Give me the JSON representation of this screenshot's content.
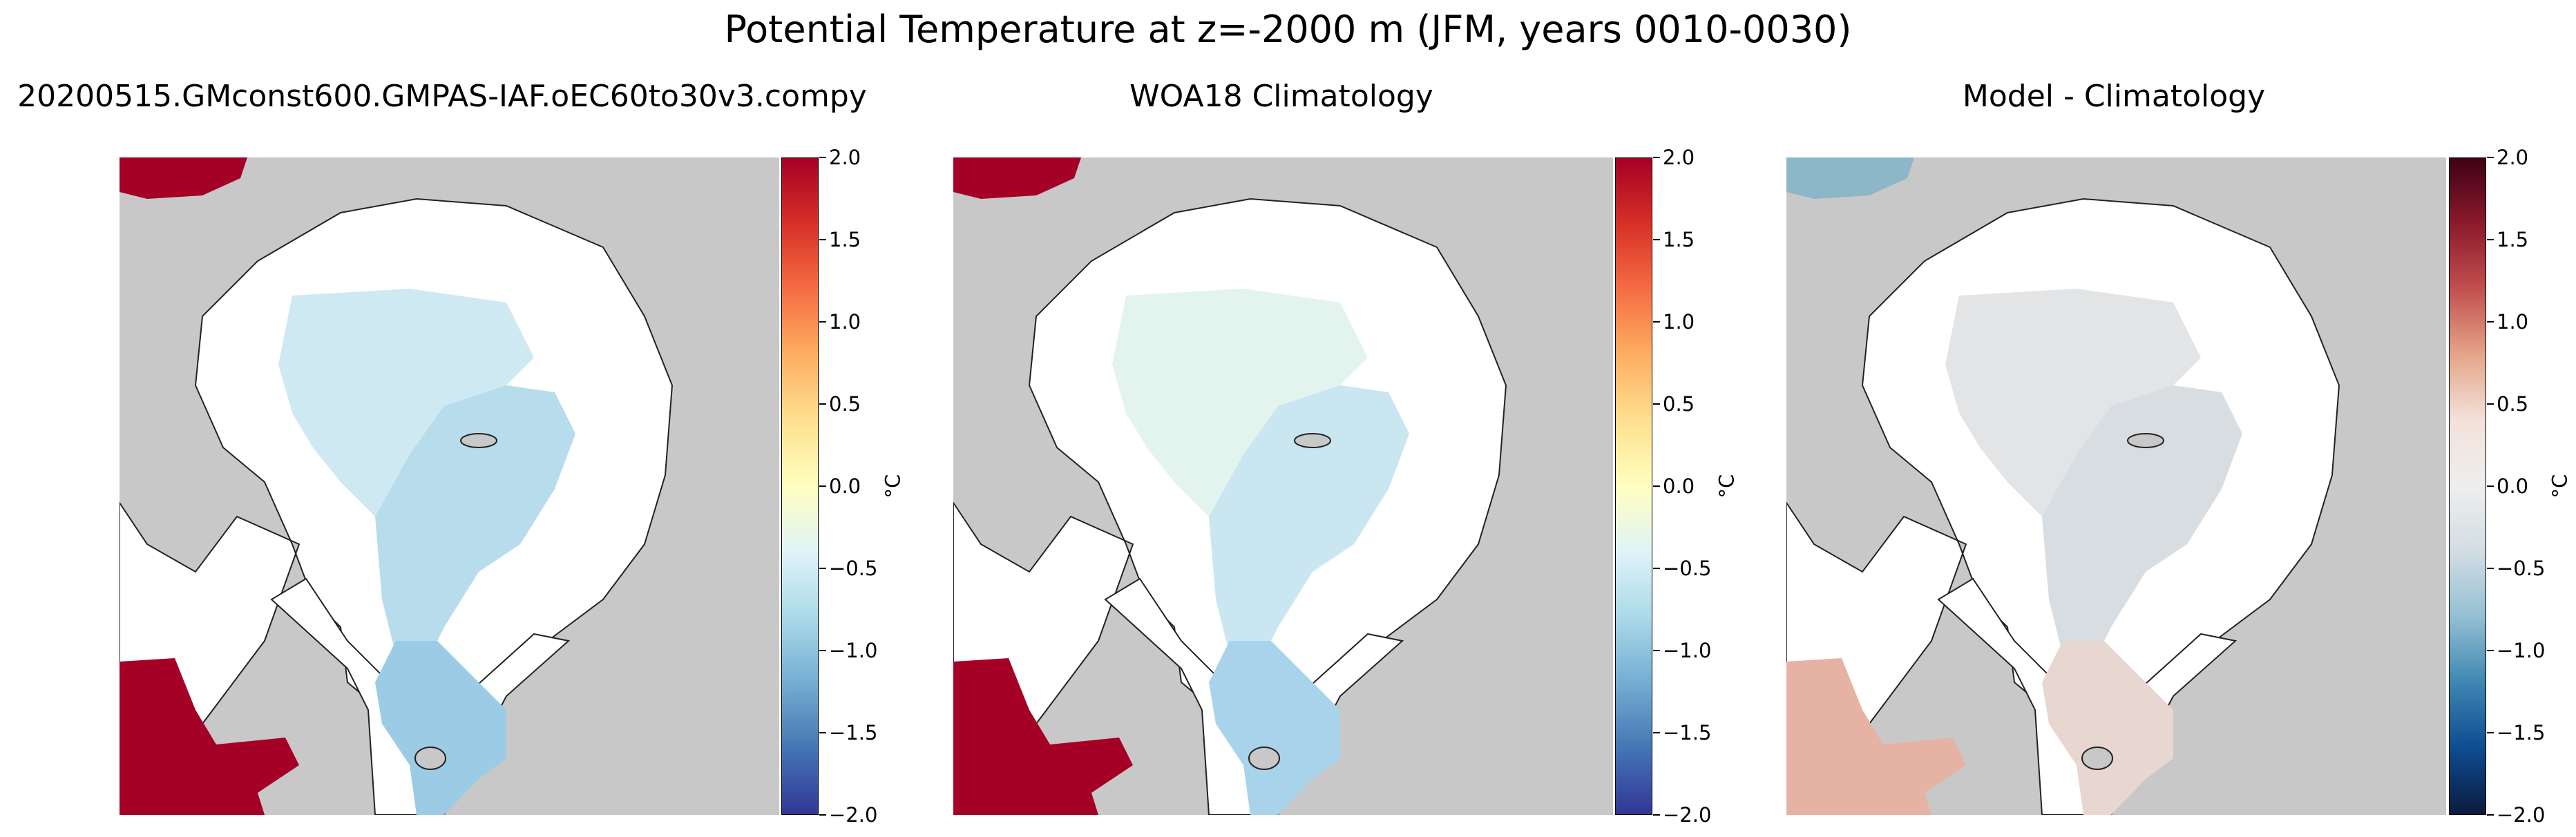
{
  "figure": {
    "suptitle": "Potential Temperature at z=-2000 m (JFM, years 0010-0030)"
  },
  "panels": [
    {
      "title": "20200515.GMconst600.GMPAS-IAF.oEC60to30v3.compy",
      "colormap": "RdYlBu_r",
      "colorbar": {
        "ticks": [
          "2.0",
          "1.5",
          "1.0",
          "0.5",
          "0.0",
          "−0.5",
          "−1.0",
          "−1.5",
          "−2.0"
        ],
        "unit": "°C",
        "range": [
          -2.0,
          2.0
        ],
        "gradient": [
          "#a50026",
          "#d73027",
          "#f46d43",
          "#fdae61",
          "#fee090",
          "#ffffbf",
          "#e0f3f8",
          "#abd9e9",
          "#74add1",
          "#4575b4",
          "#313695"
        ]
      },
      "colors": {
        "basin_main": "#cfe9f3",
        "basin_eurasian": "#b7dcec",
        "fram": "#9ccbe5",
        "warm": "#a50026"
      }
    },
    {
      "title": "WOA18 Climatology",
      "colormap": "RdYlBu_r",
      "colorbar": {
        "ticks": [
          "2.0",
          "1.5",
          "1.0",
          "0.5",
          "0.0",
          "−0.5",
          "−1.0",
          "−1.5",
          "−2.0"
        ],
        "unit": "°C",
        "range": [
          -2.0,
          2.0
        ],
        "gradient": [
          "#a50026",
          "#d73027",
          "#f46d43",
          "#fdae61",
          "#fee090",
          "#ffffbf",
          "#e0f3f8",
          "#abd9e9",
          "#74add1",
          "#4575b4",
          "#313695"
        ]
      },
      "colors": {
        "basin_main": "#e3f3ee",
        "basin_eurasian": "#c9e6f1",
        "fram": "#a8d3ea",
        "warm": "#a50026"
      }
    },
    {
      "title": "Model - Climatology",
      "colormap": "RdBu_r",
      "colorbar": {
        "ticks": [
          "2.0",
          "1.5",
          "1.0",
          "0.5",
          "0.0",
          "−0.5",
          "−1.0",
          "−1.5",
          "−2.0"
        ],
        "unit": "°C",
        "range": [
          -2.0,
          2.0
        ],
        "gradient": [
          "#3f0014",
          "#8b1a2c",
          "#c2504f",
          "#e5a58a",
          "#f3e2da",
          "#eeeeee",
          "#d2dde3",
          "#93bfd2",
          "#3f86b1",
          "#0d4c91",
          "#0c1a3d"
        ]
      },
      "colors": {
        "basin_main": "#e2e4e6",
        "basin_eurasian": "#d8dde1",
        "fram": "#e8d6d0",
        "warm": "#e6b2a3"
      }
    }
  ]
}
